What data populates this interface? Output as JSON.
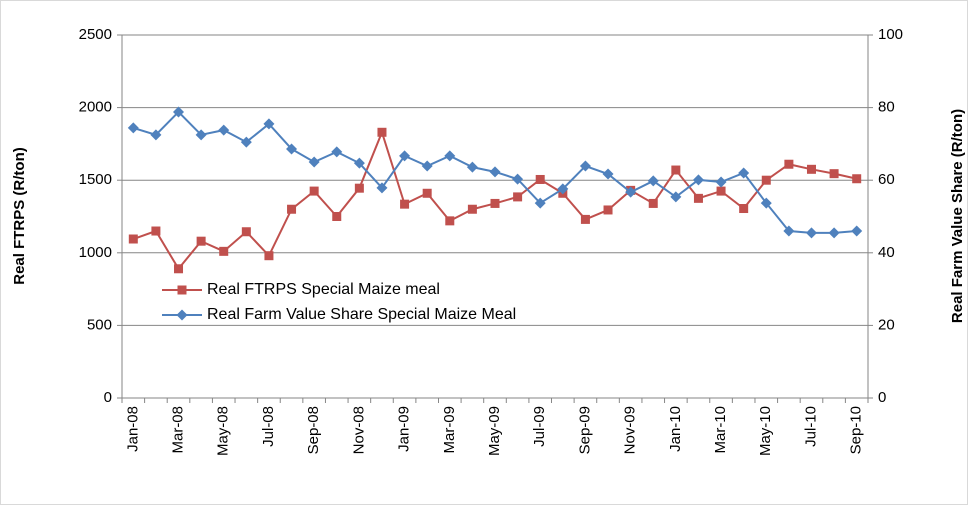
{
  "chart_data": {
    "type": "line",
    "y_label": "Real FTRPS (R/ton)",
    "y2_label": "Real Farm Value Share (R/ton)",
    "categories": [
      "Jan-08",
      null,
      "Mar-08",
      null,
      "May-08",
      null,
      "Jul-08",
      null,
      "Sep-08",
      null,
      "Nov-08",
      null,
      "Jan-09",
      null,
      "Mar-09",
      null,
      "May-09",
      null,
      "Jul-09",
      null,
      "Sep-09",
      null,
      "Nov-09",
      null,
      "Jan-10",
      null,
      "Mar-10",
      null,
      "May-10",
      null,
      "Jul-10",
      null,
      "Sep-10"
    ],
    "series": [
      {
        "name": "Real FTRPS Special Maize meal",
        "color": "#c0504d",
        "marker": "square",
        "values": [
          1095,
          1150,
          890,
          1080,
          1010,
          1145,
          980,
          1300,
          1425,
          1250,
          1445,
          1830,
          1335,
          1410,
          1220,
          1300,
          1340,
          1385,
          1505,
          1410,
          1230,
          1295,
          1430,
          1340,
          1570,
          1375,
          1425,
          1305,
          1500,
          1610,
          1575,
          1545,
          1510
        ]
      },
      {
        "name": "Real Farm Value Share Special Maize Meal",
        "color": "#4f81bd",
        "marker": "diamond",
        "axis": "y2",
        "values": [
          74.4,
          72.5,
          78.8,
          72.5,
          73.8,
          70.5,
          75.5,
          68.6,
          65.0,
          67.8,
          64.7,
          57.9,
          66.7,
          63.9,
          66.7,
          63.6,
          62.3,
          60.3,
          53.7,
          57.6,
          63.9,
          61.7,
          56.7,
          59.8,
          55.4,
          60.1,
          59.5,
          62.0,
          53.7,
          46.0,
          45.5,
          45.5,
          46.0
        ]
      }
    ],
    "ylim": [
      0,
      2500
    ],
    "yticks": [
      0,
      500,
      1000,
      1500,
      2000,
      2500
    ],
    "y2lim": [
      0,
      100
    ],
    "y2ticks": [
      0,
      20,
      40,
      60,
      80,
      100
    ],
    "grid": true,
    "legend": "lower left"
  }
}
